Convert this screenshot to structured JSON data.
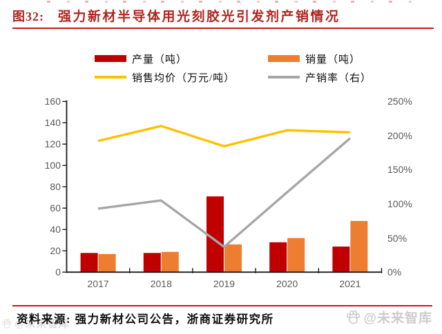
{
  "figure_header": {
    "label": "图32:",
    "title": "强力新材半导体用光刻胶光引发剂产销情况"
  },
  "footer": {
    "source_note": "资料来源: 强力新材公司公告，浙商证券研究所"
  },
  "watermarks": {
    "bottom_right": "@未来智库",
    "bottom_left_faint": "@未来智库"
  },
  "colors": {
    "title_red": "#b02420",
    "separator_red": "#cb1414",
    "production_red": "#c00000",
    "sales_orange": "#ed7d31",
    "price_yellow": "#ffc000",
    "ratio_gray": "#a6a6a6",
    "axis_text_gray": "#595959",
    "watermark_gray": "#cdcdcd"
  },
  "chart_data": {
    "type": "bar+line combo",
    "title": "强力新材半导体用光刻胶光引发剂产销情况",
    "categories": [
      "2017",
      "2018",
      "2019",
      "2020",
      "2021"
    ],
    "series": [
      {
        "name": "产量（吨）",
        "type": "bar",
        "axis": "left",
        "color": "#c00000",
        "values": [
          18,
          18,
          71,
          28,
          24
        ]
      },
      {
        "name": "销量（吨）",
        "type": "bar",
        "axis": "left",
        "color": "#ed7d31",
        "values": [
          17,
          19,
          26,
          32,
          48
        ]
      },
      {
        "name": "销售均价（万元/吨）",
        "type": "line",
        "axis": "left",
        "color": "#ffc000",
        "values": [
          123,
          137,
          118,
          133,
          131
        ]
      },
      {
        "name": "产销率（右）",
        "type": "line",
        "axis": "right",
        "color": "#a6a6a6",
        "values": [
          93,
          105,
          37,
          117,
          196
        ]
      }
    ],
    "left_axis": {
      "min": 0,
      "max": 160,
      "ticks": [
        0,
        20,
        40,
        60,
        80,
        100,
        120,
        140,
        160
      ],
      "suffix": ""
    },
    "right_axis": {
      "min": 0,
      "max": 250,
      "ticks": [
        0,
        50,
        100,
        150,
        200,
        250
      ],
      "suffix": "%"
    },
    "grid": false,
    "legend_position": "top"
  }
}
